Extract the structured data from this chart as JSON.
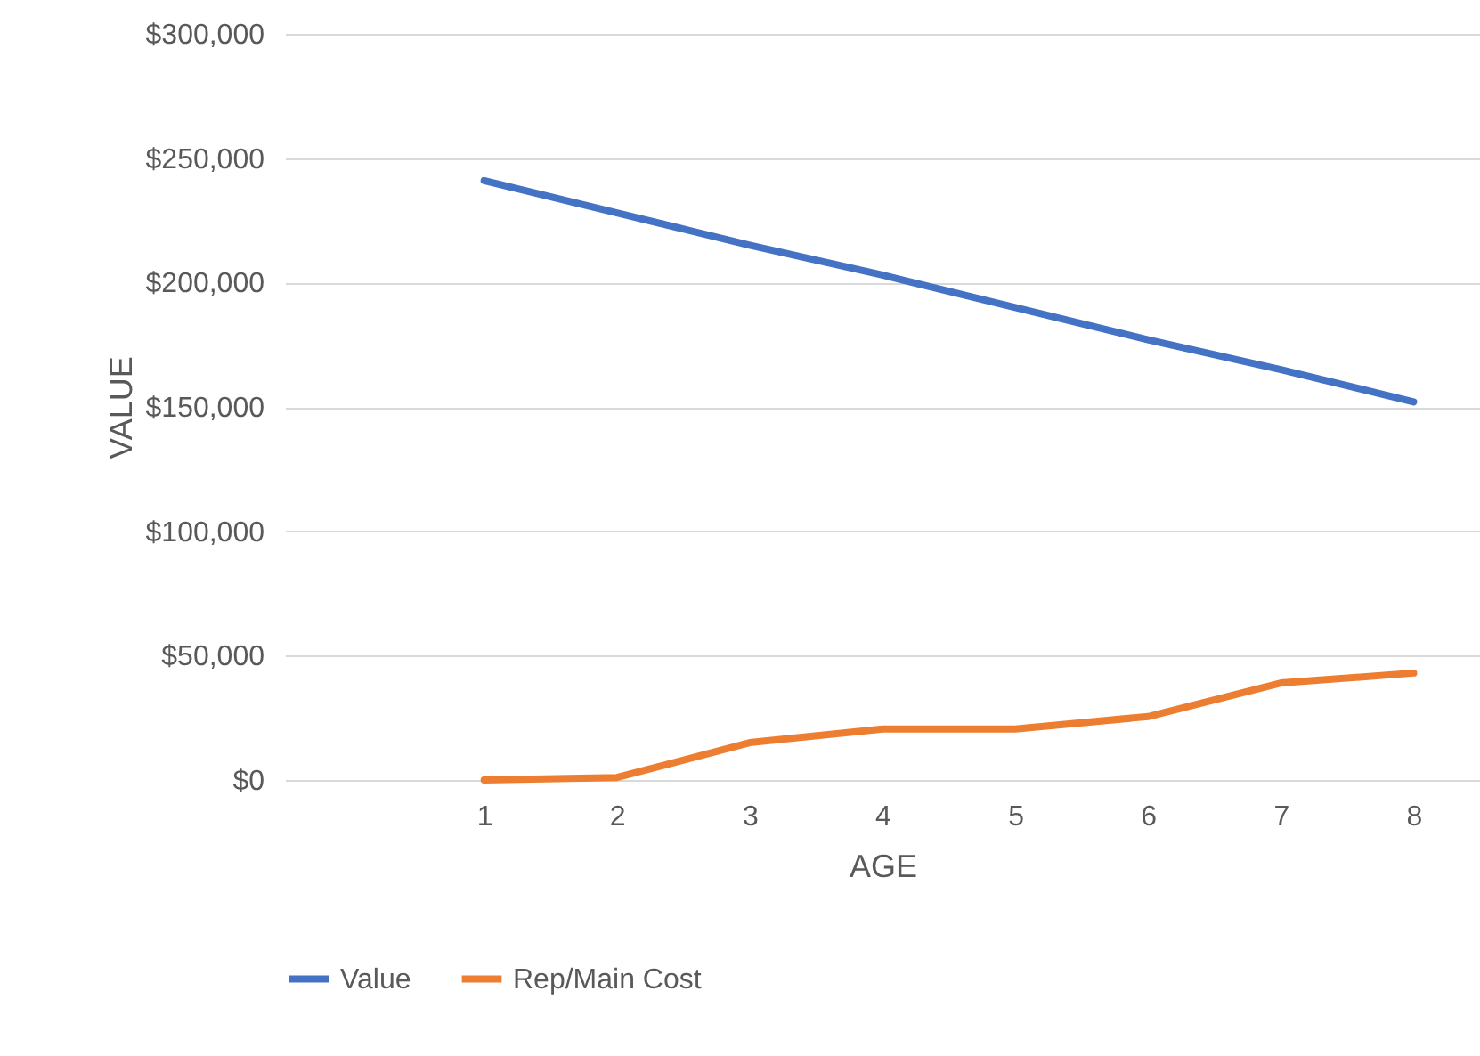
{
  "chart_data": {
    "type": "line",
    "xlabel": "AGE",
    "ylabel": "VALUE",
    "categories": [
      null,
      "1",
      "2",
      "3",
      "4",
      "5",
      "6",
      "7",
      "8"
    ],
    "series": [
      {
        "name": "Value",
        "color": "#4472c4",
        "values": [
          null,
          241000,
          228000,
          215000,
          203000,
          190000,
          177000,
          165000,
          152000
        ]
      },
      {
        "name": "Rep/Main Cost",
        "color": "#ed7d31",
        "values": [
          null,
          0,
          1000,
          15000,
          20500,
          20500,
          25500,
          39000,
          43000
        ]
      }
    ],
    "ylim": [
      0,
      300000
    ],
    "yticks": [
      {
        "value": 0,
        "label": "$0"
      },
      {
        "value": 50000,
        "label": "$50,000"
      },
      {
        "value": 100000,
        "label": "$100,000"
      },
      {
        "value": 150000,
        "label": "$150,000"
      },
      {
        "value": 200000,
        "label": "$200,000"
      },
      {
        "value": 250000,
        "label": "$250,000"
      },
      {
        "value": 300000,
        "label": "$300,000"
      }
    ],
    "grid": "y",
    "legend": "bottom",
    "marker": "none",
    "line_style": "solid"
  }
}
